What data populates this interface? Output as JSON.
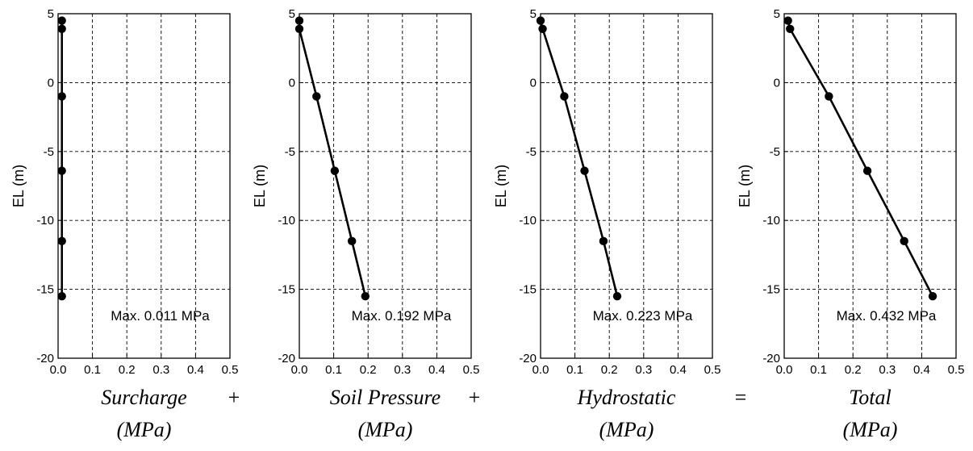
{
  "chart_data": [
    {
      "type": "line",
      "xlabel_line1": "Surcharge",
      "xlabel_line2": "(MPa)",
      "ylabel": "EL (m)",
      "xlim": [
        0.0,
        0.5
      ],
      "ylim": [
        -20,
        5
      ],
      "x_ticks": [
        "0.0",
        "0.1",
        "0.2",
        "0.3",
        "0.4",
        "0.5"
      ],
      "y_ticks": [
        "5",
        "0",
        "-5",
        "-10",
        "-15",
        "-20"
      ],
      "grid": true,
      "annotation": "Max. 0.011 MPa",
      "series": [
        {
          "x": [
            0.011,
            0.011,
            0.011,
            0.011,
            0.011,
            0.011
          ],
          "y": [
            4.5,
            3.9,
            -1.0,
            -6.4,
            -11.5,
            -15.5
          ]
        }
      ]
    },
    {
      "type": "line",
      "xlabel_line1": "Soil Pressure",
      "xlabel_line2": "(MPa)",
      "ylabel": "EL (m)",
      "xlim": [
        0.0,
        0.5
      ],
      "ylim": [
        -20,
        5
      ],
      "x_ticks": [
        "0.0",
        "0.1",
        "0.2",
        "0.3",
        "0.4",
        "0.5"
      ],
      "y_ticks": [
        "5",
        "0",
        "-5",
        "-10",
        "-15",
        "-20"
      ],
      "grid": true,
      "annotation": "Max. 0.192 MPa",
      "series": [
        {
          "x": [
            0.0,
            0.0,
            0.05,
            0.103,
            0.153,
            0.192
          ],
          "y": [
            4.5,
            3.9,
            -1.0,
            -6.4,
            -11.5,
            -15.5
          ]
        }
      ]
    },
    {
      "type": "line",
      "xlabel_line1": "Hydrostatic",
      "xlabel_line2": "(MPa)",
      "ylabel": "EL (m)",
      "xlim": [
        0.0,
        0.5
      ],
      "ylim": [
        -20,
        5
      ],
      "x_ticks": [
        "0.0",
        "0.1",
        "0.2",
        "0.3",
        "0.4",
        "0.5"
      ],
      "y_ticks": [
        "5",
        "0",
        "-5",
        "-10",
        "-15",
        "-20"
      ],
      "grid": true,
      "annotation": "Max. 0.223 MPa",
      "series": [
        {
          "x": [
            0.0,
            0.006,
            0.069,
            0.128,
            0.183,
            0.223
          ],
          "y": [
            4.5,
            3.9,
            -1.0,
            -6.4,
            -11.5,
            -15.5
          ]
        }
      ]
    },
    {
      "type": "line",
      "xlabel_line1": "Total",
      "xlabel_line2": "(MPa)",
      "ylabel": "EL (m)",
      "xlim": [
        0.0,
        0.5
      ],
      "ylim": [
        -20,
        5
      ],
      "x_ticks": [
        "0.0",
        "0.1",
        "0.2",
        "0.3",
        "0.4",
        "0.5"
      ],
      "y_ticks": [
        "5",
        "0",
        "-5",
        "-10",
        "-15",
        "-20"
      ],
      "grid": true,
      "annotation": "Max. 0.432 MPa",
      "series": [
        {
          "x": [
            0.011,
            0.017,
            0.13,
            0.242,
            0.349,
            0.432
          ],
          "y": [
            4.5,
            3.9,
            -1.0,
            -6.4,
            -11.5,
            -15.5
          ]
        }
      ]
    }
  ],
  "operators": [
    "+",
    "+",
    "="
  ]
}
